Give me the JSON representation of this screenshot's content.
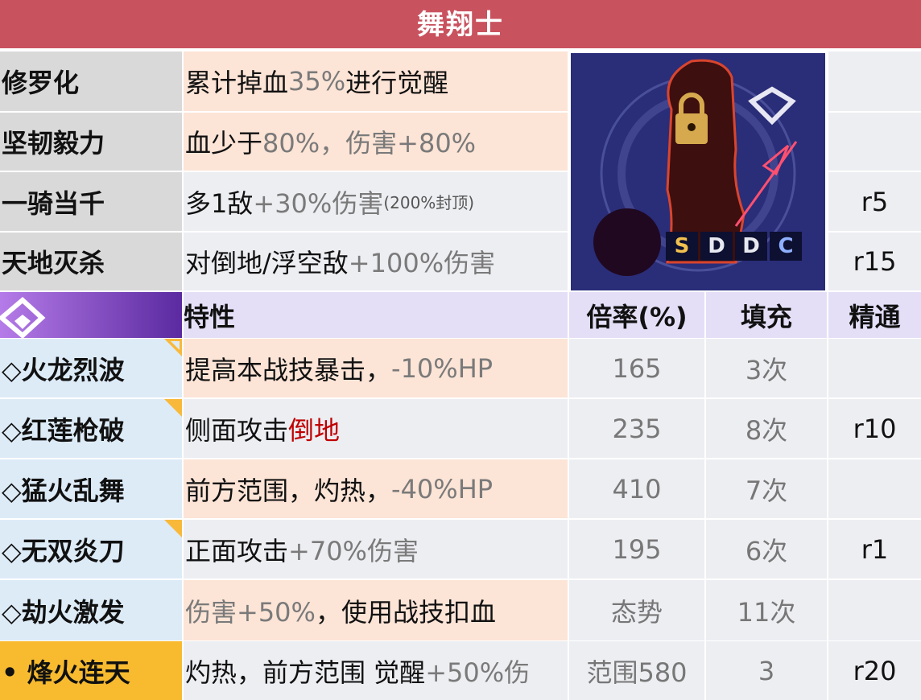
{
  "title": "舞翔士",
  "passives": [
    {
      "name": "修罗化",
      "desc": [
        {
          "t": "累计掉血",
          "c": "k"
        },
        {
          "t": "35%",
          "c": "g"
        },
        {
          "t": "进行觉醒",
          "c": "k"
        }
      ],
      "mastery": ""
    },
    {
      "name": "坚韧毅力",
      "desc": [
        {
          "t": "血少于",
          "c": "k"
        },
        {
          "t": "80%，伤害+80%",
          "c": "g"
        }
      ],
      "mastery": ""
    },
    {
      "name": "一骑当千",
      "desc": [
        {
          "t": "多1敌",
          "c": "k"
        },
        {
          "t": "+30%伤害",
          "c": "g"
        },
        {
          "t": "(200%封顶)",
          "c": "sm"
        }
      ],
      "mastery": "r5"
    },
    {
      "name": "天地灭杀",
      "desc": [
        {
          "t": "对倒地/浮空敌",
          "c": "k"
        },
        {
          "t": "+100%伤害",
          "c": "g"
        }
      ],
      "mastery": "r15"
    }
  ],
  "portrait": {
    "ranks": [
      "S",
      "D",
      "D",
      "C"
    ],
    "rank_colors": [
      "#f2c14e",
      "#e8e8f0",
      "#e8e8f0",
      "#8fb0ff"
    ]
  },
  "header": {
    "trait": "特性",
    "rate": "倍率(%)",
    "fill": "填充",
    "mastery": "精通"
  },
  "skills": [
    {
      "name": "◇火龙烈波",
      "desc": [
        {
          "t": "提高本战技暴击，",
          "c": "k"
        },
        {
          "t": "-10%HP",
          "c": "g"
        }
      ],
      "rate": "165",
      "fill": "3次",
      "mastery": "",
      "marker": "hollow"
    },
    {
      "name": "◇红莲枪破",
      "desc": [
        {
          "t": "侧面攻击",
          "c": "k"
        },
        {
          "t": "倒地",
          "c": "r"
        }
      ],
      "rate": "235",
      "fill": "8次",
      "mastery": "r10",
      "marker": "solid"
    },
    {
      "name": "◇猛火乱舞",
      "desc": [
        {
          "t": "前方范围，灼热，",
          "c": "k"
        },
        {
          "t": "-40%HP",
          "c": "g"
        }
      ],
      "rate": "410",
      "fill": "7次",
      "mastery": "",
      "marker": ""
    },
    {
      "name": "◇无双炎刀",
      "desc": [
        {
          "t": "正面攻击",
          "c": "k"
        },
        {
          "t": "+70%伤害",
          "c": "g"
        }
      ],
      "rate": "195",
      "fill": "6次",
      "mastery": "r1",
      "marker": "solid"
    },
    {
      "name": "◇劫火激发",
      "desc": [
        {
          "t": "伤害+50%",
          "c": "g"
        },
        {
          "t": "，使用战技扣血",
          "c": "k"
        }
      ],
      "rate": "态势",
      "fill": "11次",
      "mastery": "",
      "marker": ""
    },
    {
      "name": "• 烽火连天",
      "desc": [
        {
          "t": "灼热，前方范围 觉醒",
          "c": "k"
        },
        {
          "t": "+50%伤",
          "c": "g"
        }
      ],
      "rate": "范围580",
      "fill": "3",
      "mastery": "r20",
      "marker": ""
    }
  ],
  "colors": {
    "title_bar": "#c9525f",
    "peach": "#fce4d6",
    "gray": "#edeef2",
    "blue": "#ddebf7",
    "ultimate": "#f8bb30",
    "header": "#e4dff7"
  }
}
